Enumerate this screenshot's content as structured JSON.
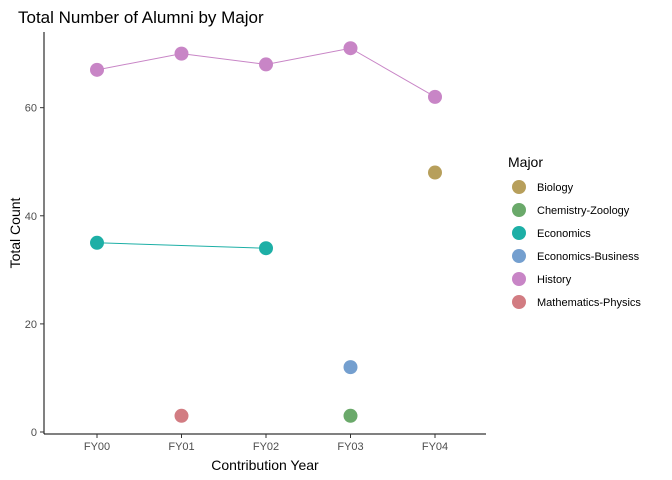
{
  "chart_data": {
    "type": "line",
    "title": "Total Number of Alumni by Major",
    "xlabel": "Contribution Year",
    "ylabel": "Total Count",
    "categories": [
      "FY00",
      "FY01",
      "FY02",
      "FY03",
      "FY04"
    ],
    "ylim": [
      0,
      74
    ],
    "yticks": [
      0,
      20,
      40,
      60
    ],
    "grid": false,
    "legend": {
      "title": "Major",
      "position": "right"
    },
    "series": [
      {
        "name": "Biology",
        "color": "#B79F5B",
        "points": [
          {
            "x": "FY04",
            "y": 48
          }
        ]
      },
      {
        "name": "Chemistry-Zoology",
        "color": "#6AA96A",
        "points": [
          {
            "x": "FY03",
            "y": 3
          }
        ]
      },
      {
        "name": "Economics",
        "color": "#1DAFA6",
        "points": [
          {
            "x": "FY00",
            "y": 35
          },
          {
            "x": "FY02",
            "y": 34
          }
        ]
      },
      {
        "name": "Economics-Business",
        "color": "#749FCF",
        "points": [
          {
            "x": "FY03",
            "y": 12
          }
        ]
      },
      {
        "name": "History",
        "color": "#C885C6",
        "points": [
          {
            "x": "FY00",
            "y": 67
          },
          {
            "x": "FY01",
            "y": 70
          },
          {
            "x": "FY02",
            "y": 68
          },
          {
            "x": "FY03",
            "y": 71
          },
          {
            "x": "FY04",
            "y": 62
          }
        ]
      },
      {
        "name": "Mathematics-Physics",
        "color": "#D27C82",
        "points": [
          {
            "x": "FY01",
            "y": 3
          }
        ]
      }
    ]
  }
}
